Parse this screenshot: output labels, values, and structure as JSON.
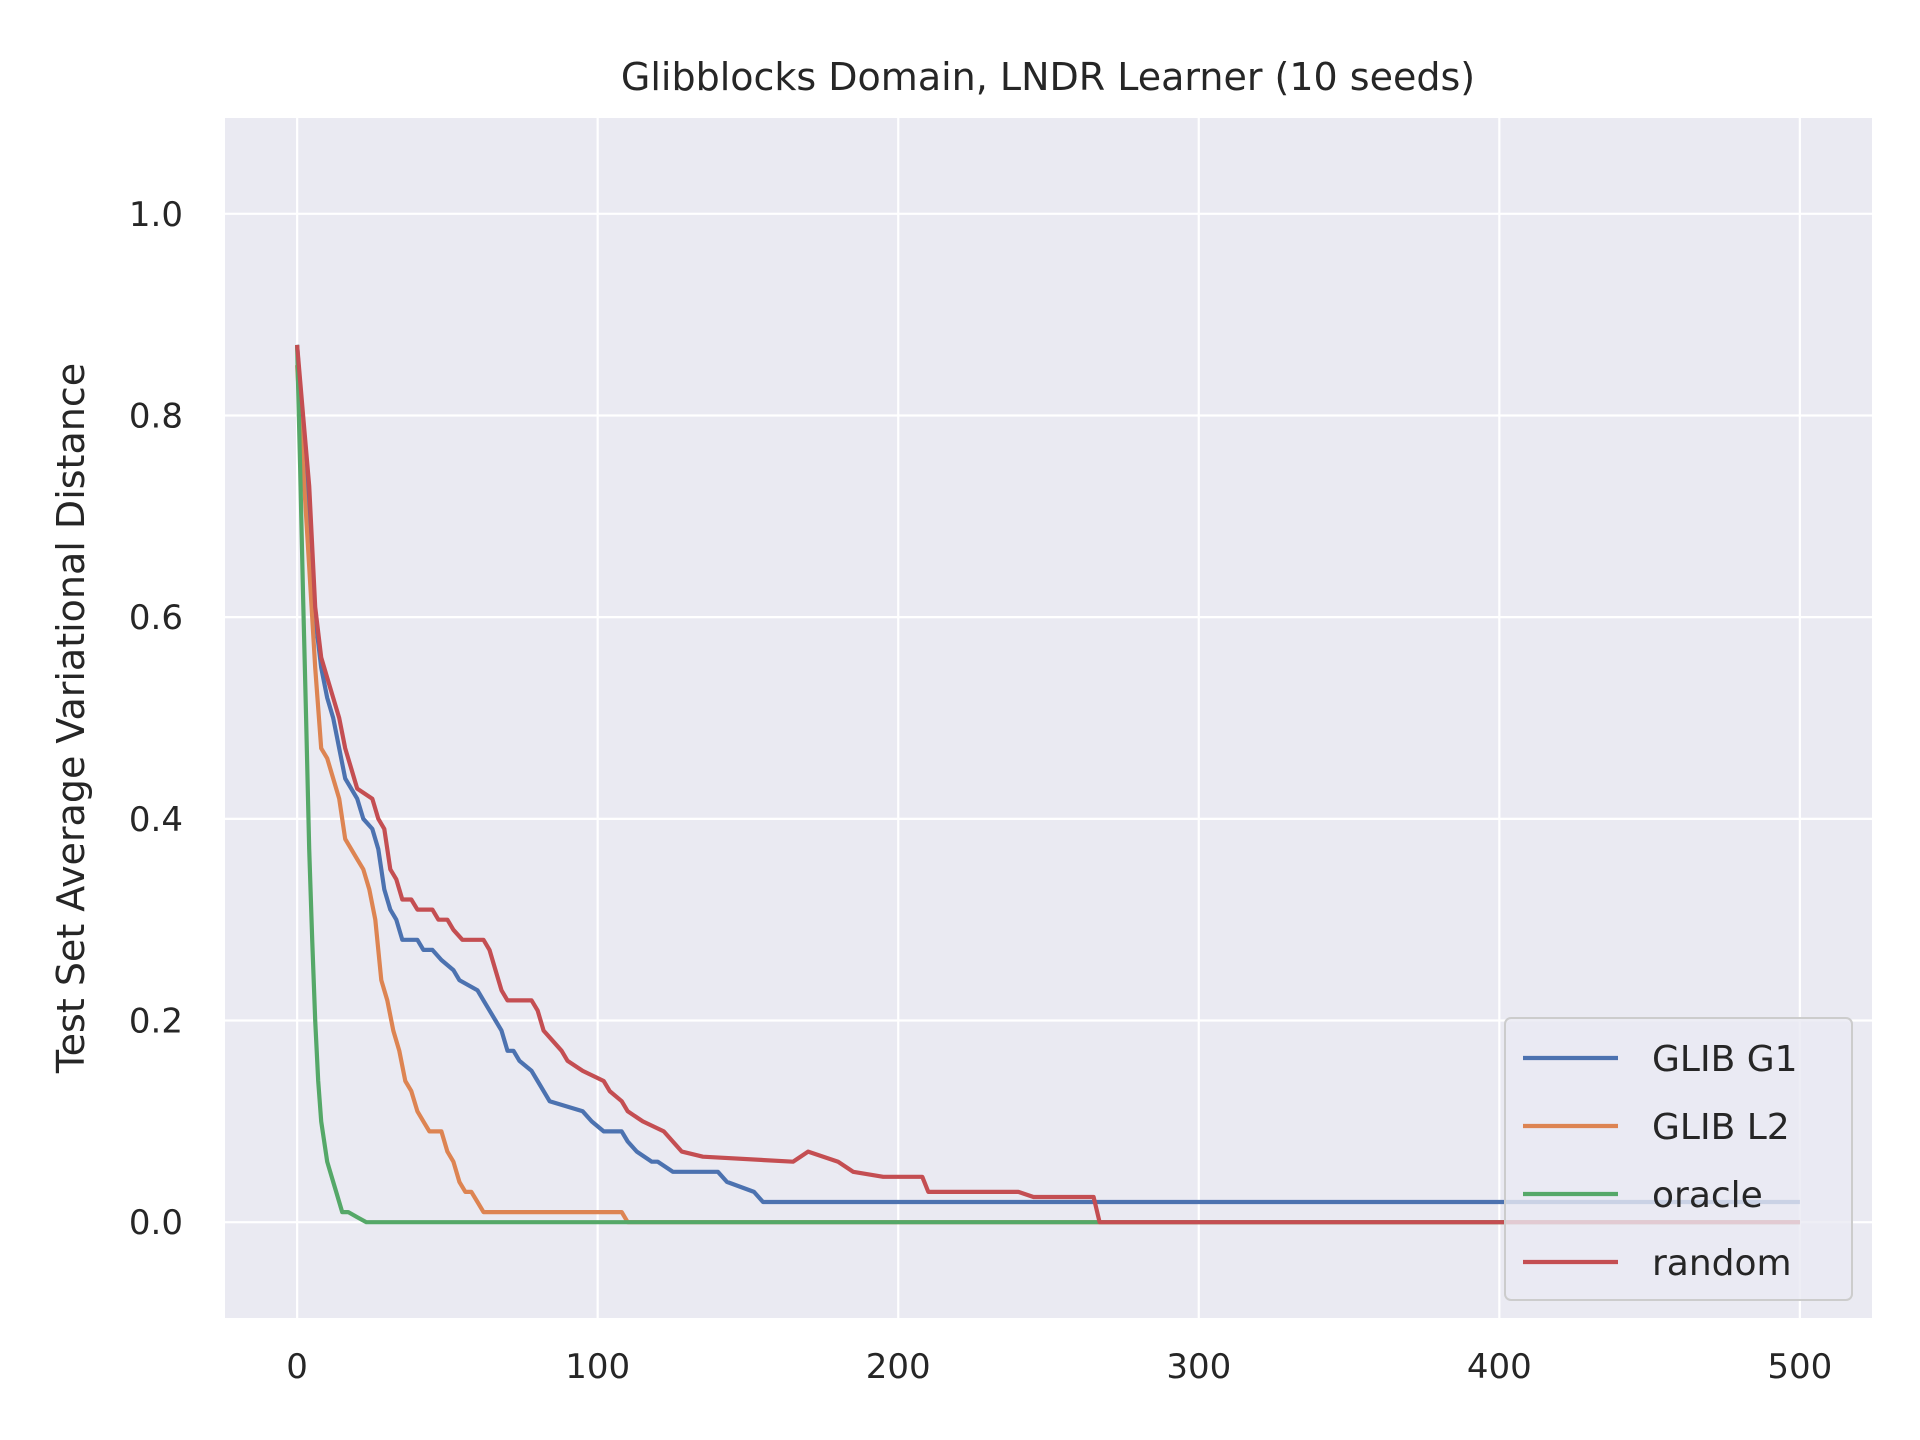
{
  "chart_data": {
    "type": "line",
    "title": "Glibblocks Domain, LNDR Learner (10 seeds)",
    "xlabel": "",
    "ylabel": "Test Set Average Variational Distance",
    "xlim": [
      -24,
      524
    ],
    "ylim": [
      -0.095,
      1.095
    ],
    "xticks": [
      0,
      100,
      200,
      300,
      400,
      500
    ],
    "yticks": [
      0.0,
      0.2,
      0.4,
      0.6,
      0.8,
      1.0
    ],
    "xtick_labels": [
      "0",
      "100",
      "200",
      "300",
      "400",
      "500"
    ],
    "ytick_labels": [
      "0.0",
      "0.2",
      "0.4",
      "0.6",
      "0.8",
      "1.0"
    ],
    "grid": true,
    "legend_position": "lower-right",
    "series": [
      {
        "name": "GLIB G1",
        "color": "#4c72b0",
        "points": [
          [
            0,
            0.87
          ],
          [
            2,
            0.78
          ],
          [
            4,
            0.7
          ],
          [
            6,
            0.6
          ],
          [
            8,
            0.55
          ],
          [
            10,
            0.52
          ],
          [
            12,
            0.5
          ],
          [
            14,
            0.47
          ],
          [
            16,
            0.44
          ],
          [
            18,
            0.43
          ],
          [
            20,
            0.42
          ],
          [
            22,
            0.4
          ],
          [
            25,
            0.39
          ],
          [
            27,
            0.37
          ],
          [
            29,
            0.33
          ],
          [
            31,
            0.31
          ],
          [
            33,
            0.3
          ],
          [
            35,
            0.28
          ],
          [
            40,
            0.28
          ],
          [
            42,
            0.27
          ],
          [
            45,
            0.27
          ],
          [
            48,
            0.26
          ],
          [
            52,
            0.25
          ],
          [
            54,
            0.24
          ],
          [
            60,
            0.23
          ],
          [
            62,
            0.22
          ],
          [
            64,
            0.21
          ],
          [
            66,
            0.2
          ],
          [
            68,
            0.19
          ],
          [
            70,
            0.17
          ],
          [
            72,
            0.17
          ],
          [
            74,
            0.16
          ],
          [
            78,
            0.15
          ],
          [
            80,
            0.14
          ],
          [
            82,
            0.13
          ],
          [
            84,
            0.12
          ],
          [
            95,
            0.11
          ],
          [
            98,
            0.1
          ],
          [
            102,
            0.09
          ],
          [
            108,
            0.09
          ],
          [
            110,
            0.08
          ],
          [
            113,
            0.07
          ],
          [
            118,
            0.06
          ],
          [
            120,
            0.06
          ],
          [
            125,
            0.05
          ],
          [
            140,
            0.05
          ],
          [
            143,
            0.04
          ],
          [
            152,
            0.03
          ],
          [
            155,
            0.02
          ],
          [
            500,
            0.02
          ]
        ]
      },
      {
        "name": "GLIB L2",
        "color": "#dd8452",
        "points": [
          [
            0,
            0.85
          ],
          [
            2,
            0.75
          ],
          [
            4,
            0.65
          ],
          [
            6,
            0.55
          ],
          [
            8,
            0.47
          ],
          [
            10,
            0.46
          ],
          [
            12,
            0.44
          ],
          [
            14,
            0.42
          ],
          [
            16,
            0.38
          ],
          [
            18,
            0.37
          ],
          [
            20,
            0.36
          ],
          [
            22,
            0.35
          ],
          [
            24,
            0.33
          ],
          [
            26,
            0.3
          ],
          [
            28,
            0.24
          ],
          [
            30,
            0.22
          ],
          [
            32,
            0.19
          ],
          [
            34,
            0.17
          ],
          [
            36,
            0.14
          ],
          [
            38,
            0.13
          ],
          [
            40,
            0.11
          ],
          [
            42,
            0.1
          ],
          [
            44,
            0.09
          ],
          [
            48,
            0.09
          ],
          [
            50,
            0.07
          ],
          [
            52,
            0.06
          ],
          [
            54,
            0.04
          ],
          [
            56,
            0.03
          ],
          [
            58,
            0.03
          ],
          [
            60,
            0.02
          ],
          [
            62,
            0.01
          ],
          [
            108,
            0.01
          ],
          [
            110,
            0.0
          ],
          [
            500,
            0.0
          ]
        ]
      },
      {
        "name": "oracle",
        "color": "#55a868",
        "points": [
          [
            0,
            0.87
          ],
          [
            1,
            0.75
          ],
          [
            2,
            0.62
          ],
          [
            3,
            0.5
          ],
          [
            4,
            0.37
          ],
          [
            5,
            0.28
          ],
          [
            6,
            0.2
          ],
          [
            7,
            0.14
          ],
          [
            8,
            0.1
          ],
          [
            9,
            0.08
          ],
          [
            10,
            0.06
          ],
          [
            11,
            0.05
          ],
          [
            12,
            0.04
          ],
          [
            13,
            0.03
          ],
          [
            14,
            0.02
          ],
          [
            15,
            0.01
          ],
          [
            17,
            0.01
          ],
          [
            20,
            0.005
          ],
          [
            23,
            0.0
          ],
          [
            500,
            0.0
          ]
        ]
      },
      {
        "name": "random",
        "color": "#c44e52",
        "points": [
          [
            0,
            0.87
          ],
          [
            2,
            0.8
          ],
          [
            4,
            0.73
          ],
          [
            6,
            0.61
          ],
          [
            8,
            0.56
          ],
          [
            10,
            0.54
          ],
          [
            12,
            0.52
          ],
          [
            14,
            0.5
          ],
          [
            16,
            0.47
          ],
          [
            18,
            0.45
          ],
          [
            20,
            0.43
          ],
          [
            25,
            0.42
          ],
          [
            27,
            0.4
          ],
          [
            29,
            0.39
          ],
          [
            31,
            0.35
          ],
          [
            33,
            0.34
          ],
          [
            35,
            0.32
          ],
          [
            38,
            0.32
          ],
          [
            40,
            0.31
          ],
          [
            45,
            0.31
          ],
          [
            47,
            0.3
          ],
          [
            50,
            0.3
          ],
          [
            52,
            0.29
          ],
          [
            55,
            0.28
          ],
          [
            62,
            0.28
          ],
          [
            64,
            0.27
          ],
          [
            66,
            0.25
          ],
          [
            68,
            0.23
          ],
          [
            70,
            0.22
          ],
          [
            78,
            0.22
          ],
          [
            80,
            0.21
          ],
          [
            82,
            0.19
          ],
          [
            85,
            0.18
          ],
          [
            88,
            0.17
          ],
          [
            90,
            0.16
          ],
          [
            95,
            0.15
          ],
          [
            102,
            0.14
          ],
          [
            104,
            0.13
          ],
          [
            108,
            0.12
          ],
          [
            110,
            0.11
          ],
          [
            115,
            0.1
          ],
          [
            122,
            0.09
          ],
          [
            125,
            0.08
          ],
          [
            128,
            0.07
          ],
          [
            135,
            0.065
          ],
          [
            165,
            0.06
          ],
          [
            170,
            0.07
          ],
          [
            180,
            0.06
          ],
          [
            185,
            0.05
          ],
          [
            195,
            0.045
          ],
          [
            208,
            0.045
          ],
          [
            210,
            0.03
          ],
          [
            240,
            0.03
          ],
          [
            245,
            0.025
          ],
          [
            265,
            0.025
          ],
          [
            267,
            0.0
          ],
          [
            500,
            0.0
          ]
        ]
      }
    ]
  }
}
